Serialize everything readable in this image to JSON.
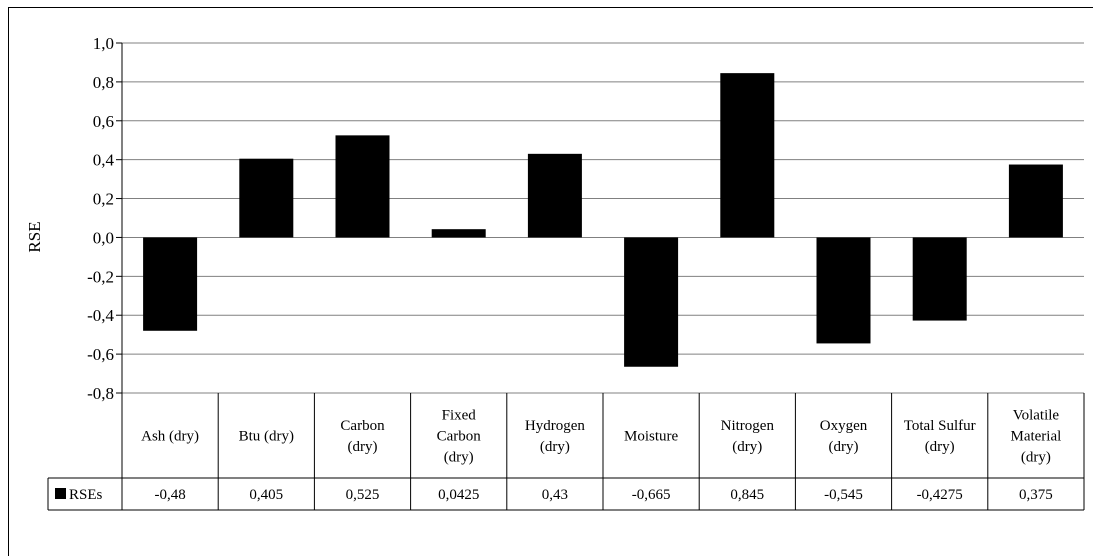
{
  "chart_data": {
    "type": "bar",
    "ylabel": "RSE",
    "ylim": [
      -0.8,
      1.0
    ],
    "yticks": [
      "1,0",
      "0,8",
      "0,6",
      "0,4",
      "0,2",
      "0,0",
      "-0,2",
      "-0,4",
      "-0,6",
      "-0,8"
    ],
    "categories": [
      [
        "Ash (dry)"
      ],
      [
        "Btu (dry)"
      ],
      [
        "Carbon",
        "(dry)"
      ],
      [
        "Fixed",
        "Carbon",
        "(dry)"
      ],
      [
        "Hydrogen",
        "(dry)"
      ],
      [
        "Moisture"
      ],
      [
        "Nitrogen",
        "(dry)"
      ],
      [
        "Oxygen",
        "(dry)"
      ],
      [
        "Total Sulfur",
        "(dry)"
      ],
      [
        "Volatile",
        "Material",
        "(dry)"
      ]
    ],
    "series": [
      {
        "name": "RSEs",
        "color": "#000000",
        "values": [
          -0.48,
          0.405,
          0.525,
          0.0425,
          0.43,
          -0.665,
          0.845,
          -0.545,
          -0.4275,
          0.375
        ],
        "value_labels": [
          "-0,48",
          "0,405",
          "0,525",
          "0,0425",
          "0,43",
          "-0,665",
          "0,845",
          "-0,545",
          "-0,4275",
          "0,375"
        ]
      }
    ],
    "grid": true,
    "data_table": true
  }
}
